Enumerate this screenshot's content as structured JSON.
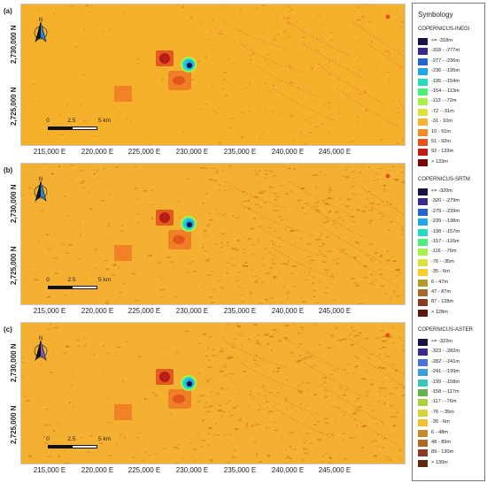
{
  "panels": [
    {
      "label": "(a)",
      "north_letter": "N",
      "north_color": "#1e88e5",
      "y_ticks": [
        "2,730,000 N",
        "2,725,000 N"
      ],
      "x_ticks": [
        "215,000 E",
        "220,000 E",
        "225,000 E",
        "230,000 E",
        "235,000 E",
        "240,000 E",
        "245,000 E"
      ],
      "scale_labels": [
        "0",
        "2.5",
        "5 km"
      ],
      "base_color": "#f5b02c"
    },
    {
      "label": "(b)",
      "north_letter": "N",
      "north_color": "#1e88e5",
      "y_ticks": [
        "2,730,000 N",
        "2,725,000 N"
      ],
      "x_ticks": [
        "215,000 E",
        "220,000 E",
        "225,000 E",
        "230,000 E",
        "235,000 E",
        "240,000 E",
        "245,000 E"
      ],
      "scale_labels": [
        "0",
        "2.5",
        "5 km"
      ],
      "base_color": "#f3b031"
    },
    {
      "label": "(c)",
      "north_letter": "N",
      "north_color": "#7e57c2",
      "y_ticks": [
        "2,730,000 N",
        "2,725,000 N"
      ],
      "x_ticks": [
        "215,000 E",
        "220,000 E",
        "225,000 E",
        "230,000 E",
        "235,000 E",
        "240,000 E",
        "245,000 E"
      ],
      "scale_labels": [
        "0",
        "2.5",
        "5 km"
      ],
      "base_color": "#f3b031"
    }
  ],
  "legend": {
    "title": "Symbology",
    "groups": [
      {
        "heading": "COPERNICUS-INEGI",
        "items": [
          {
            "label": "<= -318m",
            "color": "#1b1147"
          },
          {
            "label": "-318 - -277m",
            "color": "#372a8c"
          },
          {
            "label": "-277 - -236m",
            "color": "#2563d1"
          },
          {
            "label": "-236 - -195m",
            "color": "#1ea6f0"
          },
          {
            "label": "-195 - -154m",
            "color": "#22dcc0"
          },
          {
            "label": "-154 - -113m",
            "color": "#4bef7a"
          },
          {
            "label": "-113 - -72m",
            "color": "#a6f24a"
          },
          {
            "label": "-72 - -31m",
            "color": "#dce43a"
          },
          {
            "label": "-31 - 10m",
            "color": "#f7b42c"
          },
          {
            "label": "10 - 51m",
            "color": "#f68a24"
          },
          {
            "label": "51 - 92m",
            "color": "#e8501a"
          },
          {
            "label": "92 - 133m",
            "color": "#c21d12"
          },
          {
            "label": "> 133m",
            "color": "#7a0403"
          }
        ]
      },
      {
        "heading": "COPERNICUS-SRTM",
        "items": [
          {
            "label": "<= -320m",
            "color": "#1b1147"
          },
          {
            "label": "-320 - -279m",
            "color": "#372a8c"
          },
          {
            "label": "-279 - -239m",
            "color": "#2563d1"
          },
          {
            "label": "-239 - -198m",
            "color": "#1ea6f0"
          },
          {
            "label": "-198 - -157m",
            "color": "#22dcc0"
          },
          {
            "label": "-157 - -116m",
            "color": "#4bef7a"
          },
          {
            "label": "-116 - -76m",
            "color": "#a6f24a"
          },
          {
            "label": "-76 - -35m",
            "color": "#dce43a"
          },
          {
            "label": "-35 - 6m",
            "color": "#f7d02c"
          },
          {
            "label": "6 - 47m",
            "color": "#b39a2a"
          },
          {
            "label": "47 - 87m",
            "color": "#a56a28"
          },
          {
            "label": "87 - 128m",
            "color": "#8a3b22"
          },
          {
            "label": "> 128m",
            "color": "#5a1a0c"
          }
        ]
      },
      {
        "heading": "COPERNICUS-ASTER",
        "items": [
          {
            "label": "<= -323m",
            "color": "#1b1147"
          },
          {
            "label": "-323 - -282m",
            "color": "#372a8c"
          },
          {
            "label": "-282 - -241m",
            "color": "#4a74d8"
          },
          {
            "label": "-241 - -199m",
            "color": "#3aa0e0"
          },
          {
            "label": "-199 - -158m",
            "color": "#38c8b8"
          },
          {
            "label": "-158 - -117m",
            "color": "#66b24a"
          },
          {
            "label": "-117 - -76m",
            "color": "#a8d23c"
          },
          {
            "label": "-76 - -35m",
            "color": "#d8d43a"
          },
          {
            "label": "-35 - 6m",
            "color": "#f5c030"
          },
          {
            "label": "6 - 48m",
            "color": "#c68a2a"
          },
          {
            "label": "48 - 89m",
            "color": "#b06a28"
          },
          {
            "label": "89 - 130m",
            "color": "#8a3b22"
          },
          {
            "label": "> 130m",
            "color": "#5a2a10"
          }
        ]
      }
    ]
  }
}
